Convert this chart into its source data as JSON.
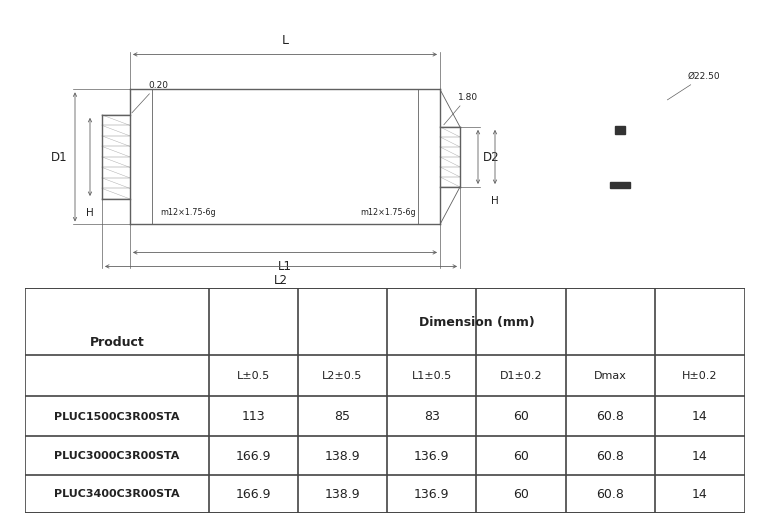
{
  "table_headers": [
    "Product",
    "L±0.5",
    "L2±0.5",
    "L1±0.5",
    "D1±0.2",
    "Dmax",
    "H±0.2"
  ],
  "table_rows": [
    [
      "PLUC1500C3R00STA",
      "113",
      "85",
      "83",
      "60",
      "60.8",
      "14"
    ],
    [
      "PLUC3000C3R00STA",
      "166.9",
      "138.9",
      "136.9",
      "60",
      "60.8",
      "14"
    ],
    [
      "PLUC3400C3R00STA",
      "166.9",
      "138.9",
      "136.9",
      "60",
      "60.8",
      "14"
    ]
  ],
  "dim_header": "Dimension (mm)",
  "bg_color": "#ffffff",
  "line_color": "#606060",
  "text_color": "#222222",
  "table_line_color": "#444444",
  "diag_label_0_20": "0.20",
  "diag_label_1_80": "1.80",
  "diag_label_m12": "m12×1.75-6g",
  "diag_label_d1": "D1",
  "diag_label_d2": "D2",
  "diag_label_h": "H",
  "diag_label_l": "L",
  "diag_label_l1": "L1",
  "diag_label_l2": "L2",
  "diag_label_dia": "Ø22.50"
}
